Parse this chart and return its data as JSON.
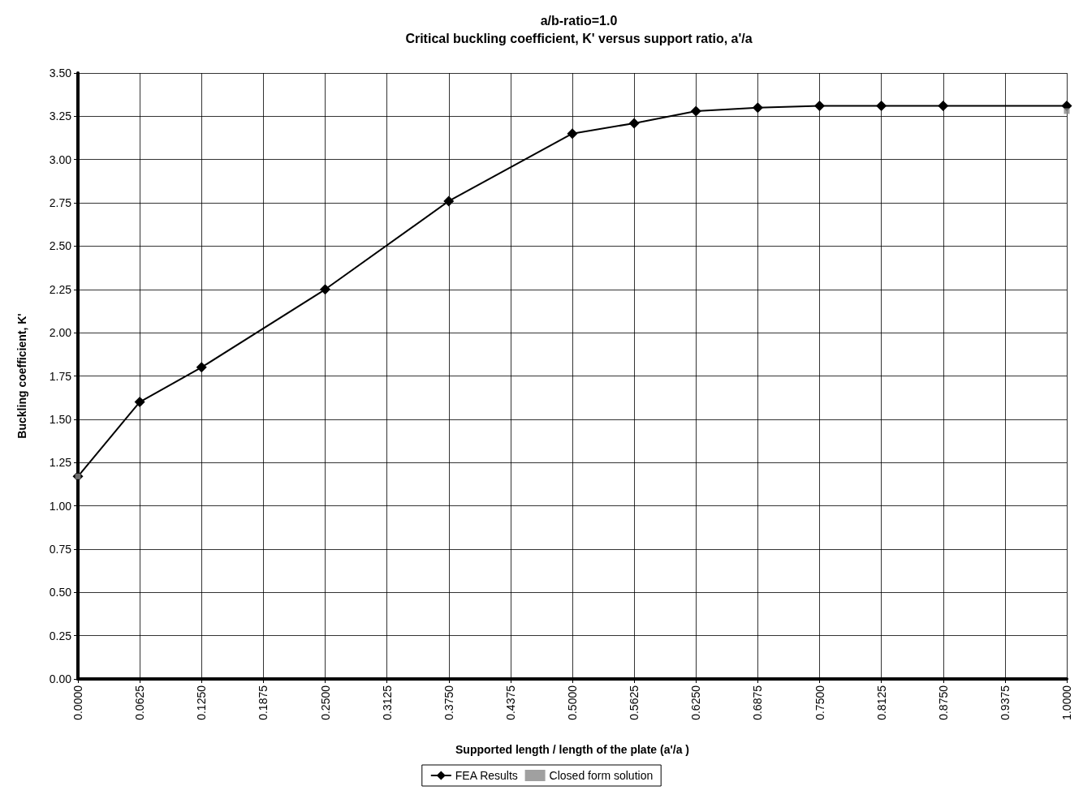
{
  "chart_data": {
    "type": "line",
    "title": "a/b-ratio=1.0",
    "subtitle": "Critical buckling coefficient, K' versus support ratio, a'/a",
    "xlabel": "Supported length / length of the plate (a'/a )",
    "ylabel": "Buckling coefficient, K'",
    "xlim": [
      0,
      1
    ],
    "ylim": [
      0,
      3.5
    ],
    "xticks": [
      {
        "value": 0,
        "label": "0.0000"
      },
      {
        "value": 0.0625,
        "label": "0.0625"
      },
      {
        "value": 0.125,
        "label": "0.1250"
      },
      {
        "value": 0.1875,
        "label": "0.1875"
      },
      {
        "value": 0.25,
        "label": "0.2500"
      },
      {
        "value": 0.3125,
        "label": "0.3125"
      },
      {
        "value": 0.375,
        "label": "0.3750"
      },
      {
        "value": 0.4375,
        "label": "0.4375"
      },
      {
        "value": 0.5,
        "label": "0.5000"
      },
      {
        "value": 0.5625,
        "label": "0.5625"
      },
      {
        "value": 0.625,
        "label": "0.6250"
      },
      {
        "value": 0.6875,
        "label": "0.6875"
      },
      {
        "value": 0.75,
        "label": "0.7500"
      },
      {
        "value": 0.8125,
        "label": "0.8125"
      },
      {
        "value": 0.875,
        "label": "0.8750"
      },
      {
        "value": 0.9375,
        "label": "0.9375"
      },
      {
        "value": 1,
        "label": "1.0000"
      }
    ],
    "yticks": [
      {
        "value": 0,
        "label": "0.00"
      },
      {
        "value": 0.25,
        "label": "0.25"
      },
      {
        "value": 0.5,
        "label": "0.50"
      },
      {
        "value": 0.75,
        "label": "0.75"
      },
      {
        "value": 1,
        "label": "1.00"
      },
      {
        "value": 1.25,
        "label": "1.25"
      },
      {
        "value": 1.5,
        "label": "1.50"
      },
      {
        "value": 1.75,
        "label": "1.75"
      },
      {
        "value": 2,
        "label": "2.00"
      },
      {
        "value": 2.25,
        "label": "2.25"
      },
      {
        "value": 2.5,
        "label": "2.50"
      },
      {
        "value": 2.75,
        "label": "2.75"
      },
      {
        "value": 3,
        "label": "3.00"
      },
      {
        "value": 3.25,
        "label": "3.25"
      },
      {
        "value": 3.5,
        "label": "3.50"
      }
    ],
    "grid": true,
    "legend": "bottom",
    "marker": "diamond",
    "line_style": "solid",
    "series": [
      {
        "name": "FEA Results",
        "color": "#000000",
        "x": [
          0,
          0.0625,
          0.125,
          0.25,
          0.375,
          0.5,
          0.5625,
          0.625,
          0.6875,
          0.75,
          0.8125,
          0.875,
          1
        ],
        "values": [
          1.17,
          1.6,
          1.8,
          2.25,
          2.76,
          3.15,
          3.21,
          3.28,
          3.3,
          3.31,
          3.31,
          3.31,
          3.31
        ]
      },
      {
        "name": "Closed form solution",
        "type": "scatter",
        "marker": "square",
        "color": "#888888",
        "x": [
          0,
          1
        ],
        "values": [
          1.17,
          3.28
        ]
      }
    ]
  }
}
